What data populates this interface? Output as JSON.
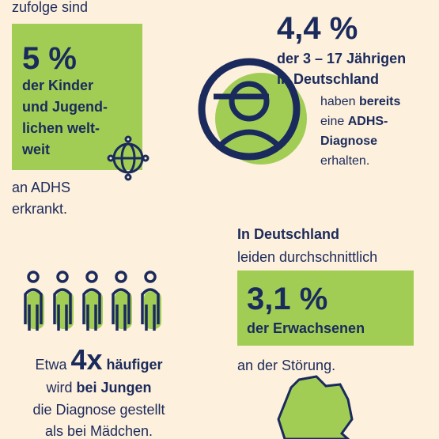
{
  "intro": "zufolge sind",
  "world": {
    "percent": "5 %",
    "lines": [
      "der Kinder",
      "und Jugend-",
      "lichen welt-",
      "weit"
    ],
    "after": [
      "an ADHS",
      "erkrankt."
    ]
  },
  "germany_children": {
    "percent": "4,4 %",
    "lines": [
      "der 3 – 17 Jährigen",
      "in Deutschland"
    ],
    "detail": [
      [
        "haben ",
        "bereits"
      ],
      [
        "eine ",
        "ADHS-"
      ],
      [
        "Diagnose"
      ],
      [
        "erhalten."
      ]
    ]
  },
  "adults": {
    "lines": [
      "In Deutschland",
      "leiden durchschnittlich"
    ],
    "percent": "3,1 %",
    "group": "der Erwachsenen",
    "after": "an der Störung."
  },
  "boys": {
    "lines": [
      [
        "Etwa ",
        "4x",
        " häufiger"
      ],
      [
        "wird ",
        "bei Jungen"
      ],
      [
        "die Diagnose gestellt"
      ],
      [
        "als bei Mädchen."
      ]
    ]
  }
}
